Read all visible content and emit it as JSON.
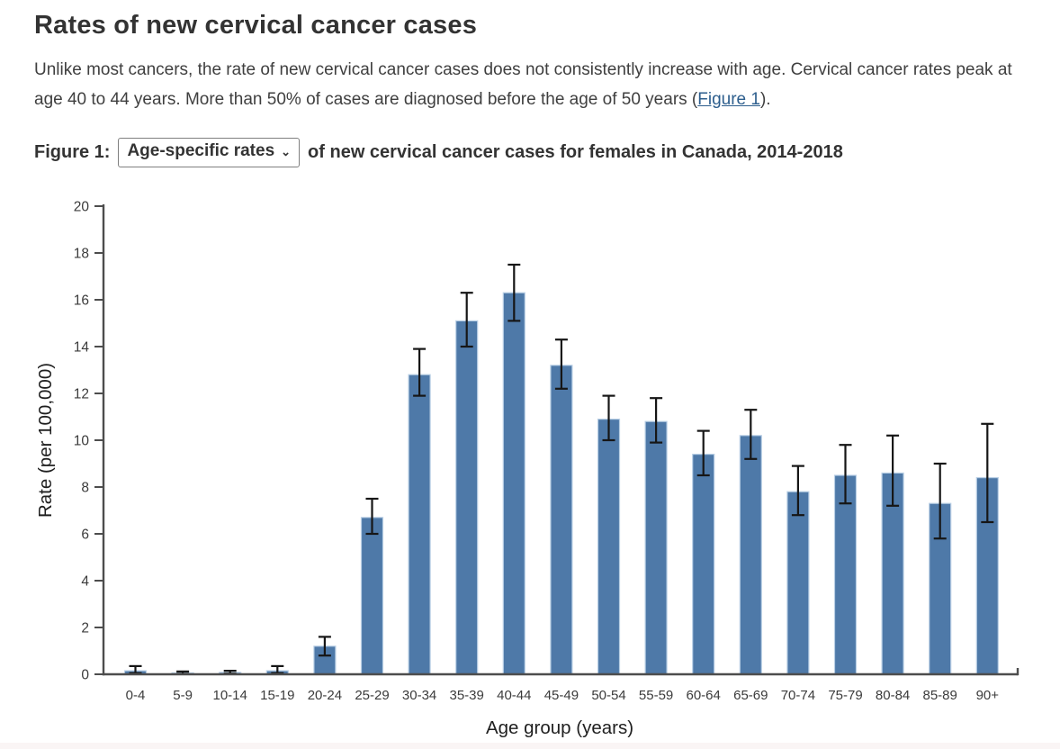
{
  "page": {
    "title": "Rates of new cervical cancer cases",
    "intro": {
      "text_before_link": "Unlike most cancers, the rate of new cervical cancer cases does not consistently increase with age. Cervical cancer rates peak at age 40 to 44 years. More than 50% of cases are diagnosed before the age of 50 years (",
      "link_text": "Figure 1",
      "text_after_link": ")."
    },
    "figure_caption": {
      "prefix": "Figure 1:",
      "selector_value": "Age-specific rates",
      "suffix": "of new cervical cancer cases for females in Canada, 2014-2018"
    }
  },
  "colors": {
    "bar_fill": "#4e79a8",
    "bar_edge": "#b9cfe5",
    "error_bar": "#161616",
    "axis": "#4d4d4d",
    "tick_label": "#3b3b3b",
    "axis_title": "#1f1f1f",
    "link": "#2d5e8d",
    "heading": "#333333"
  },
  "chart_data": {
    "type": "bar",
    "title": "Age-specific rates of new cervical cancer cases for females in Canada, 2014-2018",
    "xlabel": "Age group (years)",
    "ylabel": "Rate (per 100,000)",
    "ylim": [
      0,
      20
    ],
    "ytick_step": 2,
    "grid": false,
    "legend": "none",
    "error_bars": true,
    "categories": [
      "0-4",
      "5-9",
      "10-14",
      "15-19",
      "20-24",
      "25-29",
      "30-34",
      "35-39",
      "40-44",
      "45-49",
      "50-54",
      "55-59",
      "60-64",
      "65-69",
      "70-74",
      "75-79",
      "80-84",
      "85-89",
      "90+"
    ],
    "values": [
      0.15,
      0.06,
      0.08,
      0.15,
      1.2,
      6.7,
      12.8,
      15.1,
      16.3,
      13.2,
      10.9,
      10.8,
      9.4,
      10.2,
      7.8,
      8.5,
      8.6,
      7.3,
      8.4
    ],
    "ci_low": [
      0.05,
      0.02,
      0.03,
      0.05,
      0.8,
      6.0,
      11.9,
      14.0,
      15.1,
      12.2,
      10.0,
      9.9,
      8.5,
      9.2,
      6.8,
      7.3,
      7.2,
      5.8,
      6.5
    ],
    "ci_high": [
      0.35,
      0.12,
      0.15,
      0.35,
      1.6,
      7.5,
      13.9,
      16.3,
      17.5,
      14.3,
      11.9,
      11.8,
      10.4,
      11.3,
      8.9,
      9.8,
      10.2,
      9.0,
      10.7
    ]
  }
}
